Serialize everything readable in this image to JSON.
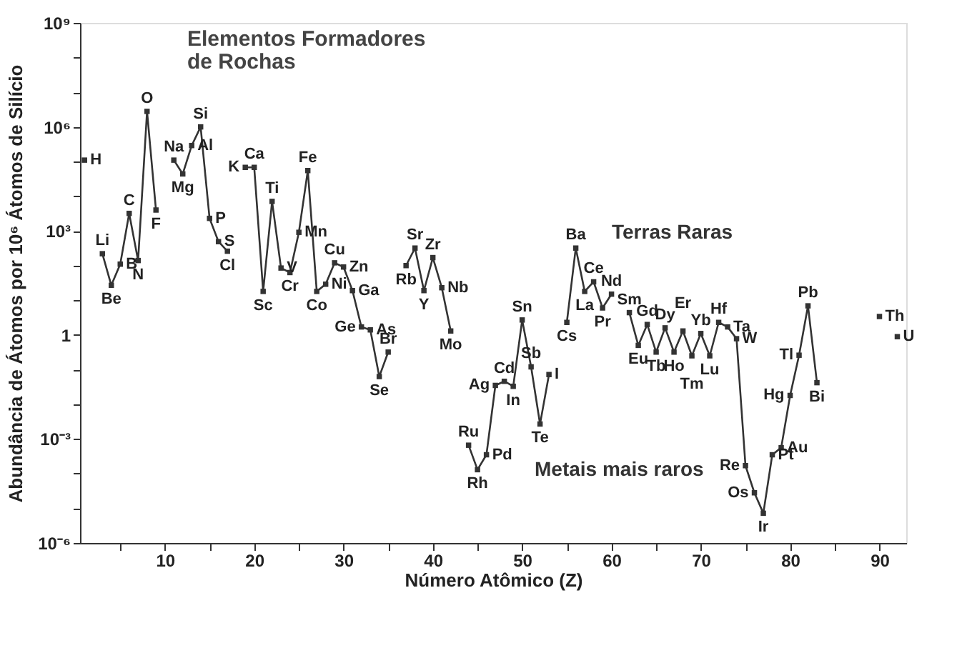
{
  "chart_data": {
    "type": "line",
    "xlabel": "Número Atômico (Z)",
    "ylabel": "Abundância de Átomos por 10⁶ Átomos de Silício",
    "log": "y",
    "xlim": [
      0.5,
      93
    ],
    "xticks": [
      {
        "value": 5,
        "label": null
      },
      10,
      {
        "value": 15,
        "label": null
      },
      20,
      {
        "value": 25,
        "label": null
      },
      30,
      {
        "value": 35,
        "label": null
      },
      40,
      {
        "value": 45,
        "label": null
      },
      50,
      {
        "value": 55,
        "label": null
      },
      60,
      {
        "value": 65,
        "label": null
      },
      70,
      {
        "value": 75,
        "label": null
      },
      80,
      {
        "value": 85,
        "label": null
      },
      90
    ],
    "ylim": [
      1e-06,
      1000000000.0
    ],
    "yticks": [
      {
        "value": 1e-06,
        "label": "10⁻⁶"
      },
      {
        "value": 1e-05,
        "label": null
      },
      {
        "value": 0.0001,
        "label": null
      },
      {
        "value": 0.001,
        "label": "10⁻³"
      },
      {
        "value": 0.01,
        "label": null
      },
      {
        "value": 0.1,
        "label": null
      },
      {
        "value": 1,
        "label": "1"
      },
      {
        "value": 10,
        "label": null
      },
      {
        "value": 100,
        "label": null
      },
      {
        "value": 1000,
        "label": "10³"
      },
      {
        "value": 10000.0,
        "label": null
      },
      {
        "value": 100000.0,
        "label": null
      },
      {
        "value": 1000000.0,
        "label": "10⁶"
      },
      {
        "value": 10000000.0,
        "label": null
      },
      {
        "value": 100000000.0,
        "label": null
      },
      {
        "value": 1000000000.0,
        "label": "10⁹"
      }
    ],
    "grid": false,
    "marker": "square",
    "line_style": "solid",
    "series": [
      {
        "color": "#333333",
        "x": [
          1,
          2,
          3,
          4,
          5,
          6,
          7,
          8,
          9,
          10,
          11,
          12,
          13,
          14,
          15,
          16,
          17,
          18,
          19,
          20,
          21,
          22,
          23,
          24,
          25,
          26,
          27,
          28,
          29,
          30,
          31,
          32,
          33,
          34,
          35,
          36,
          37,
          38,
          39,
          40,
          41,
          42,
          43,
          44,
          45,
          46,
          47,
          48,
          49,
          50,
          51,
          52,
          53,
          54,
          55,
          56,
          57,
          58,
          59,
          60,
          61,
          62,
          63,
          64,
          65,
          66,
          67,
          68,
          69,
          70,
          71,
          72,
          73,
          74,
          75,
          76,
          77,
          78,
          79,
          80,
          81,
          82,
          83,
          84,
          85,
          86,
          87,
          88,
          89,
          90,
          91,
          92
        ],
        "values": [
          110000.0,
          null,
          220.0,
          27.0,
          110.0,
          3200.0,
          140.0,
          2800000.0,
          4000.0,
          null,
          110000.0,
          44000.0,
          290000.0,
          1000000.0,
          2300.0,
          490.0,
          260.0,
          null,
          68000.0,
          68000.0,
          18.0,
          7100.0,
          85.0,
          63.0,
          910.0,
          55000.0,
          18.0,
          29.0,
          120.0,
          91.0,
          19.0,
          1.7,
          1.4,
          0.063,
          0.32,
          null,
          100.0,
          320.0,
          19.0,
          170.0,
          23.0,
          1.3,
          null,
          0.00066,
          0.00013,
          0.00035,
          0.035,
          0.046,
          0.033,
          2.7,
          0.12,
          0.0027,
          0.072,
          null,
          2.3,
          320.0,
          18.0,
          34.0,
          6.0,
          15.0,
          null,
          4.4,
          0.5,
          2.0,
          0.32,
          1.6,
          0.32,
          1.3,
          0.25,
          1.1,
          0.25,
          2.3,
          1.7,
          0.78,
          0.00017,
          2.8e-05,
          7.2e-06,
          0.00035,
          0.00056,
          0.018,
          0.26,
          6.9,
          0.042,
          null,
          null,
          null,
          null,
          null,
          null,
          3.4,
          null,
          0.89
        ]
      }
    ],
    "annotations": [
      "Elementos Formadores\nde Rochas",
      "Terras Raras",
      "Metais mais raros",
      {
        "text": "H",
        "x": 1,
        "y": 110000.0
      },
      {
        "text": "Li",
        "x": 3,
        "y": 220.0
      },
      {
        "text": "Be",
        "x": 4,
        "y": 27.0
      },
      {
        "text": "B",
        "x": 5,
        "y": 110.0
      },
      {
        "text": "C",
        "x": 6,
        "y": 3200.0
      },
      {
        "text": "N",
        "x": 7,
        "y": 140.0
      },
      {
        "text": "O",
        "x": 8,
        "y": 2800000.0
      },
      {
        "text": "F",
        "x": 9,
        "y": 4000.0
      },
      {
        "text": "Na",
        "x": 11,
        "y": 110000.0
      },
      {
        "text": "Mg",
        "x": 12,
        "y": 44000.0
      },
      {
        "text": "Al",
        "x": 13,
        "y": 290000.0
      },
      {
        "text": "Si",
        "x": 14,
        "y": 1000000.0
      },
      {
        "text": "P",
        "x": 15,
        "y": 2300.0
      },
      {
        "text": "S",
        "x": 16,
        "y": 490.0
      },
      {
        "text": "Cl",
        "x": 17,
        "y": 260.0
      },
      {
        "text": "K",
        "x": 19,
        "y": 68000.0
      },
      {
        "text": "Ca",
        "x": 20,
        "y": 68000.0
      },
      {
        "text": "Sc",
        "x": 21,
        "y": 18.0
      },
      {
        "text": "Ti",
        "x": 22,
        "y": 7100.0
      },
      {
        "text": "V",
        "x": 23,
        "y": 85.0
      },
      {
        "text": "Cr",
        "x": 24,
        "y": 63.0
      },
      {
        "text": "Mn",
        "x": 25,
        "y": 910.0
      },
      {
        "text": "Fe",
        "x": 26,
        "y": 55000.0
      },
      {
        "text": "Co",
        "x": 27,
        "y": 18.0
      },
      {
        "text": "Ni",
        "x": 28,
        "y": 29.0
      },
      {
        "text": "Cu",
        "x": 29,
        "y": 120.0
      },
      {
        "text": "Zn",
        "x": 30,
        "y": 91.0
      },
      {
        "text": "Ga",
        "x": 31,
        "y": 19.0
      },
      {
        "text": "Ge",
        "x": 32,
        "y": 1.7
      },
      {
        "text": "As",
        "x": 33,
        "y": 1.4
      },
      {
        "text": "Se",
        "x": 34,
        "y": 0.063
      },
      {
        "text": "Br",
        "x": 35,
        "y": 0.32
      },
      {
        "text": "Rb",
        "x": 37,
        "y": 100.0
      },
      {
        "text": "Sr",
        "x": 38,
        "y": 320.0
      },
      {
        "text": "Y",
        "x": 39,
        "y": 19.0
      },
      {
        "text": "Zr",
        "x": 40,
        "y": 170.0
      },
      {
        "text": "Nb",
        "x": 41,
        "y": 23.0
      },
      {
        "text": "Mo",
        "x": 42,
        "y": 1.3
      },
      {
        "text": "Ru",
        "x": 44,
        "y": 0.00066
      },
      {
        "text": "Rh",
        "x": 45,
        "y": 0.00013
      },
      {
        "text": "Pd",
        "x": 46,
        "y": 0.00035
      },
      {
        "text": "Ag",
        "x": 47,
        "y": 0.035
      },
      {
        "text": "Cd",
        "x": 48,
        "y": 0.046
      },
      {
        "text": "In",
        "x": 49,
        "y": 0.033
      },
      {
        "text": "Sn",
        "x": 50,
        "y": 2.7
      },
      {
        "text": "Sb",
        "x": 51,
        "y": 0.12
      },
      {
        "text": "Te",
        "x": 52,
        "y": 0.0027
      },
      {
        "text": "I",
        "x": 53,
        "y": 0.072
      },
      {
        "text": "Cs",
        "x": 55,
        "y": 2.3
      },
      {
        "text": "Ba",
        "x": 56,
        "y": 320.0
      },
      {
        "text": "La",
        "x": 57,
        "y": 18.0
      },
      {
        "text": "Ce",
        "x": 58,
        "y": 34.0
      },
      {
        "text": "Pr",
        "x": 59,
        "y": 6.0
      },
      {
        "text": "Nd",
        "x": 60,
        "y": 15.0
      },
      {
        "text": "Sm",
        "x": 62,
        "y": 4.4
      },
      {
        "text": "Eu",
        "x": 63,
        "y": 0.5
      },
      {
        "text": "Gd",
        "x": 64,
        "y": 2.0
      },
      {
        "text": "Tb",
        "x": 65,
        "y": 0.32
      },
      {
        "text": "Dy",
        "x": 66,
        "y": 1.6
      },
      {
        "text": "Ho",
        "x": 67,
        "y": 0.32
      },
      {
        "text": "Er",
        "x": 68,
        "y": 1.3
      },
      {
        "text": "Tm",
        "x": 69,
        "y": 0.25
      },
      {
        "text": "Yb",
        "x": 70,
        "y": 1.1
      },
      {
        "text": "Lu",
        "x": 71,
        "y": 0.25
      },
      {
        "text": "Hf",
        "x": 72,
        "y": 2.3
      },
      {
        "text": "Ta",
        "x": 73,
        "y": 1.7
      },
      {
        "text": "W",
        "x": 74,
        "y": 0.78
      },
      {
        "text": "Re",
        "x": 75,
        "y": 0.00017
      },
      {
        "text": "Os",
        "x": 76,
        "y": 2.8e-05
      },
      {
        "text": "Ir",
        "x": 77,
        "y": 7.2e-06
      },
      {
        "text": "Pt",
        "x": 78,
        "y": 0.00035
      },
      {
        "text": "Au",
        "x": 79,
        "y": 0.00056
      },
      {
        "text": "Hg",
        "x": 80,
        "y": 0.018
      },
      {
        "text": "Tl",
        "x": 81,
        "y": 0.26
      },
      {
        "text": "Pb",
        "x": 82,
        "y": 6.9
      },
      {
        "text": "Bi",
        "x": 83,
        "y": 0.042
      },
      {
        "text": "Th",
        "x": 90,
        "y": 3.4
      },
      {
        "text": "U",
        "x": 92,
        "y": 0.89
      }
    ]
  }
}
